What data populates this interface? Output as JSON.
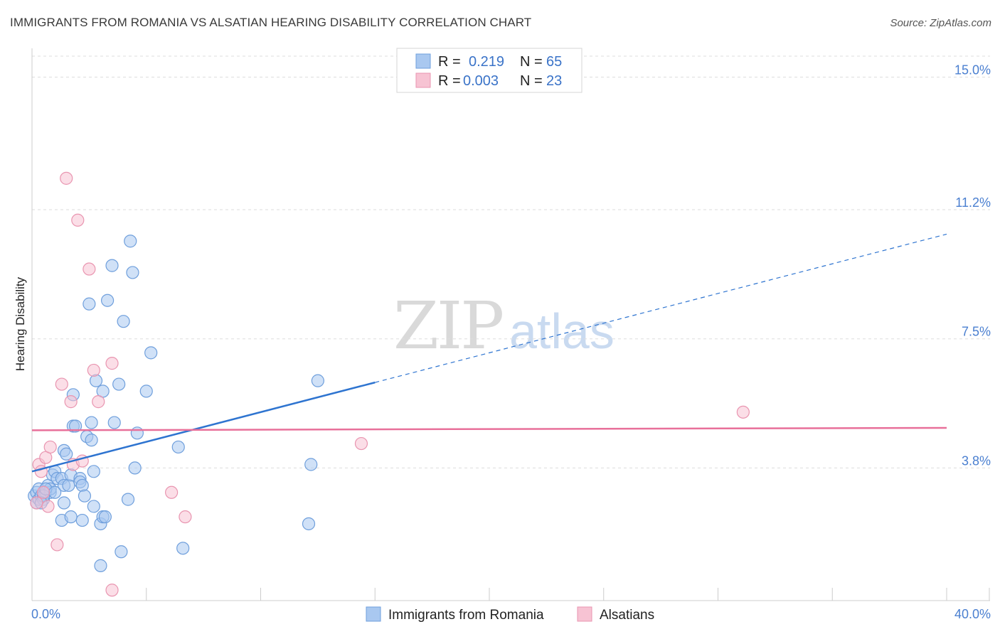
{
  "header": {
    "title": "IMMIGRANTS FROM ROMANIA VS ALSATIAN HEARING DISABILITY CORRELATION CHART",
    "source": "Source: ZipAtlas.com"
  },
  "watermark": {
    "part1": "ZIP",
    "part2": "atlas"
  },
  "legend_top": {
    "rows": [
      {
        "r_label": "R =",
        "r_value": "0.219",
        "n_label": "N =",
        "n_value": "65"
      },
      {
        "r_label": "R =",
        "r_value": "0.003",
        "n_label": "N =",
        "n_value": "23"
      }
    ]
  },
  "legend_bottom": {
    "items": [
      "Immigrants from Romania",
      "Alsatians"
    ]
  },
  "colors": {
    "series1_fill": "#a9c8f0",
    "series1_stroke": "#6f9fdc",
    "series1_line": "#2e74d0",
    "series2_fill": "#f7c3d3",
    "series2_stroke": "#e995b0",
    "series2_line": "#e8709a",
    "grid": "#dddddd",
    "tick_text": "#4a7fd0"
  },
  "chart_data": {
    "type": "scatter",
    "title": "IMMIGRANTS FROM ROMANIA VS ALSATIAN HEARING DISABILITY CORRELATION CHART",
    "xlabel": "",
    "ylabel": "Hearing Disability",
    "xlim": [
      0,
      40
    ],
    "ylim": [
      0,
      15.6
    ],
    "x_tick_labels": [
      "0.0%",
      "40.0%"
    ],
    "y_ticks": [
      3.8,
      7.5,
      11.2,
      15.0
    ],
    "y_tick_labels": [
      "3.8%",
      "7.5%",
      "11.2%",
      "15.0%"
    ],
    "grid": true,
    "legend_position": "top-center",
    "series": [
      {
        "name": "Immigrants from Romania",
        "r": 0.219,
        "n": 65,
        "trend": {
          "x0": 0.0,
          "y0": 3.7,
          "x1": 15.0,
          "y1": 6.25,
          "dashed_to_x": 40.0,
          "dashed_to_y": 10.5
        },
        "points": [
          [
            0.1,
            3.0
          ],
          [
            0.2,
            2.8
          ],
          [
            0.2,
            3.1
          ],
          [
            0.3,
            2.9
          ],
          [
            0.3,
            3.2
          ],
          [
            0.4,
            3.0
          ],
          [
            0.5,
            2.9
          ],
          [
            0.6,
            3.1
          ],
          [
            0.7,
            3.3
          ],
          [
            0.8,
            3.1
          ],
          [
            0.8,
            3.2
          ],
          [
            0.9,
            3.6
          ],
          [
            1.0,
            3.7
          ],
          [
            1.1,
            3.5
          ],
          [
            1.3,
            3.5
          ],
          [
            1.4,
            3.3
          ],
          [
            1.4,
            4.3
          ],
          [
            1.5,
            4.2
          ],
          [
            1.6,
            3.3
          ],
          [
            1.7,
            3.6
          ],
          [
            1.8,
            5.9
          ],
          [
            1.8,
            5.0
          ],
          [
            1.9,
            5.0
          ],
          [
            2.1,
            3.5
          ],
          [
            2.1,
            3.4
          ],
          [
            2.2,
            3.3
          ],
          [
            2.3,
            3.0
          ],
          [
            2.4,
            4.7
          ],
          [
            2.5,
            8.5
          ],
          [
            2.6,
            5.1
          ],
          [
            2.6,
            4.6
          ],
          [
            2.7,
            3.7
          ],
          [
            2.7,
            2.7
          ],
          [
            2.8,
            6.3
          ],
          [
            3.0,
            2.2
          ],
          [
            3.0,
            1.0
          ],
          [
            3.1,
            6.0
          ],
          [
            3.1,
            2.4
          ],
          [
            3.2,
            2.4
          ],
          [
            3.3,
            8.6
          ],
          [
            3.5,
            9.6
          ],
          [
            3.6,
            5.1
          ],
          [
            3.8,
            6.2
          ],
          [
            3.9,
            1.4
          ],
          [
            4.0,
            8.0
          ],
          [
            4.2,
            2.9
          ],
          [
            4.3,
            10.3
          ],
          [
            4.4,
            9.4
          ],
          [
            4.5,
            3.8
          ],
          [
            4.6,
            4.8
          ],
          [
            5.0,
            6.0
          ],
          [
            5.2,
            7.1
          ],
          [
            6.4,
            4.4
          ],
          [
            6.6,
            1.5
          ],
          [
            12.2,
            3.9
          ],
          [
            12.5,
            6.3
          ],
          [
            12.1,
            2.2
          ],
          [
            1.3,
            2.3
          ],
          [
            1.4,
            2.8
          ],
          [
            1.7,
            2.4
          ],
          [
            0.5,
            3.0
          ],
          [
            0.6,
            3.2
          ],
          [
            2.2,
            2.3
          ],
          [
            0.4,
            2.8
          ],
          [
            1.0,
            3.1
          ]
        ]
      },
      {
        "name": "Alsatians",
        "r": 0.003,
        "n": 23,
        "trend": {
          "x0": 0.0,
          "y0": 4.88,
          "x1": 40.0,
          "y1": 4.95
        },
        "points": [
          [
            0.2,
            2.8
          ],
          [
            0.3,
            3.9
          ],
          [
            0.4,
            3.7
          ],
          [
            0.6,
            4.1
          ],
          [
            0.7,
            2.7
          ],
          [
            0.8,
            4.4
          ],
          [
            1.1,
            1.6
          ],
          [
            1.3,
            6.2
          ],
          [
            1.5,
            12.1
          ],
          [
            1.7,
            5.7
          ],
          [
            1.8,
            3.9
          ],
          [
            2.0,
            10.9
          ],
          [
            2.2,
            4.0
          ],
          [
            2.5,
            9.5
          ],
          [
            2.7,
            6.6
          ],
          [
            2.9,
            5.7
          ],
          [
            3.5,
            6.8
          ],
          [
            3.5,
            0.3
          ],
          [
            6.1,
            3.1
          ],
          [
            6.7,
            2.4
          ],
          [
            14.4,
            4.5
          ],
          [
            31.1,
            5.4
          ],
          [
            0.5,
            3.1
          ]
        ]
      }
    ]
  }
}
